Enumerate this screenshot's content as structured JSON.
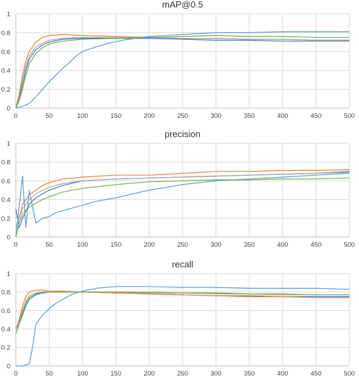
{
  "colors": {
    "series": [
      "#4472c4",
      "#ed7d31",
      "#a5a5a5",
      "#5b9bd5",
      "#70ad47",
      "#255e91",
      "#9e480e",
      "#636363",
      "#264478",
      "#43682b"
    ]
  },
  "chart_data": [
    {
      "type": "line",
      "title": "mAP@0.5",
      "xlabel": "",
      "ylabel": "",
      "xlim": [
        0,
        500
      ],
      "ylim": [
        0,
        1
      ],
      "x_ticks": [
        0,
        50,
        100,
        150,
        200,
        250,
        300,
        350,
        400,
        450,
        500
      ],
      "y_ticks": [
        0,
        0.2,
        0.4,
        0.6,
        0.8,
        1
      ],
      "grid": true,
      "legend": "none",
      "series": [
        {
          "x": [
            0,
            5,
            10,
            15,
            20,
            30,
            40,
            50,
            70,
            100,
            150,
            200,
            250,
            300,
            350,
            400,
            450,
            500
          ],
          "y": [
            0,
            0.1,
            0.25,
            0.4,
            0.52,
            0.62,
            0.67,
            0.7,
            0.73,
            0.74,
            0.74,
            0.74,
            0.73,
            0.72,
            0.72,
            0.71,
            0.71,
            0.71
          ]
        },
        {
          "x": [
            0,
            5,
            10,
            15,
            20,
            30,
            40,
            50,
            70,
            100,
            150,
            200,
            250,
            300,
            350,
            400,
            450,
            500
          ],
          "y": [
            0,
            0.15,
            0.35,
            0.5,
            0.6,
            0.7,
            0.75,
            0.77,
            0.78,
            0.77,
            0.76,
            0.75,
            0.74,
            0.74,
            0.73,
            0.73,
            0.72,
            0.72
          ]
        },
        {
          "x": [
            0,
            5,
            10,
            15,
            20,
            30,
            40,
            50,
            70,
            100,
            150,
            200,
            250,
            300,
            350,
            400,
            450,
            500
          ],
          "y": [
            0,
            0.12,
            0.3,
            0.45,
            0.55,
            0.65,
            0.69,
            0.72,
            0.74,
            0.75,
            0.75,
            0.75,
            0.74,
            0.74,
            0.73,
            0.73,
            0.72,
            0.72
          ]
        },
        {
          "x": [
            0,
            10,
            20,
            30,
            40,
            50,
            60,
            70,
            80,
            90,
            100,
            120,
            140,
            160,
            180,
            200,
            250,
            300,
            350,
            400,
            450,
            500
          ],
          "y": [
            0,
            0.02,
            0.05,
            0.12,
            0.2,
            0.28,
            0.35,
            0.42,
            0.48,
            0.55,
            0.6,
            0.65,
            0.69,
            0.72,
            0.74,
            0.76,
            0.78,
            0.8,
            0.8,
            0.81,
            0.81,
            0.81
          ]
        },
        {
          "x": [
            0,
            5,
            10,
            15,
            20,
            30,
            40,
            50,
            70,
            100,
            150,
            200,
            250,
            300,
            350,
            400,
            450,
            500
          ],
          "y": [
            0,
            0.08,
            0.2,
            0.35,
            0.47,
            0.58,
            0.64,
            0.68,
            0.71,
            0.73,
            0.74,
            0.75,
            0.76,
            0.77,
            0.76,
            0.76,
            0.75,
            0.75
          ]
        }
      ]
    },
    {
      "type": "line",
      "title": "precision",
      "xlabel": "",
      "ylabel": "",
      "xlim": [
        0,
        500
      ],
      "ylim": [
        0,
        1
      ],
      "x_ticks": [
        0,
        50,
        100,
        150,
        200,
        250,
        300,
        350,
        400,
        450,
        500
      ],
      "y_ticks": [
        0,
        0.2,
        0.4,
        0.6,
        0.8,
        1
      ],
      "grid": true,
      "legend": "none",
      "series": [
        {
          "x": [
            0,
            5,
            10,
            20,
            30,
            40,
            50,
            70,
            100,
            150,
            200,
            250,
            300,
            350,
            400,
            450,
            500
          ],
          "y": [
            0.3,
            0.1,
            0.2,
            0.35,
            0.42,
            0.46,
            0.5,
            0.55,
            0.6,
            0.62,
            0.63,
            0.64,
            0.65,
            0.66,
            0.67,
            0.68,
            0.7
          ]
        },
        {
          "x": [
            0,
            5,
            10,
            20,
            30,
            40,
            50,
            70,
            100,
            150,
            200,
            250,
            300,
            350,
            400,
            450,
            500
          ],
          "y": [
            0.1,
            0.2,
            0.35,
            0.45,
            0.5,
            0.55,
            0.58,
            0.62,
            0.64,
            0.66,
            0.66,
            0.68,
            0.7,
            0.7,
            0.71,
            0.71,
            0.72
          ]
        },
        {
          "x": [
            0,
            5,
            10,
            20,
            30,
            40,
            50,
            70,
            100,
            150,
            200,
            250,
            300,
            350,
            400,
            450,
            500
          ],
          "y": [
            0.1,
            0.2,
            0.3,
            0.4,
            0.46,
            0.5,
            0.53,
            0.57,
            0.6,
            0.62,
            0.63,
            0.64,
            0.65,
            0.66,
            0.67,
            0.68,
            0.69
          ]
        },
        {
          "x": [
            0,
            10,
            15,
            20,
            30,
            40,
            50,
            60,
            80,
            100,
            120,
            150,
            200,
            250,
            300,
            350,
            400,
            450,
            500
          ],
          "y": [
            0,
            0.65,
            0.1,
            0.5,
            0.15,
            0.2,
            0.22,
            0.26,
            0.3,
            0.34,
            0.38,
            0.42,
            0.5,
            0.56,
            0.6,
            0.62,
            0.64,
            0.66,
            0.68
          ]
        },
        {
          "x": [
            0,
            5,
            10,
            20,
            30,
            40,
            50,
            70,
            100,
            150,
            200,
            250,
            300,
            350,
            400,
            450,
            500
          ],
          "y": [
            0,
            0.15,
            0.25,
            0.32,
            0.36,
            0.4,
            0.43,
            0.48,
            0.52,
            0.56,
            0.59,
            0.6,
            0.61,
            0.61,
            0.62,
            0.62,
            0.63
          ]
        }
      ]
    },
    {
      "type": "line",
      "title": "recall",
      "xlabel": "",
      "ylabel": "",
      "xlim": [
        0,
        500
      ],
      "ylim": [
        0,
        1
      ],
      "x_ticks": [
        0,
        50,
        100,
        150,
        200,
        250,
        300,
        350,
        400,
        450,
        500
      ],
      "y_ticks": [
        0,
        0.2,
        0.4,
        0.6,
        0.8,
        1
      ],
      "grid": true,
      "legend": "none",
      "series": [
        {
          "x": [
            0,
            5,
            10,
            15,
            20,
            30,
            40,
            50,
            70,
            100,
            150,
            200,
            250,
            300,
            350,
            400,
            450,
            500
          ],
          "y": [
            0.4,
            0.45,
            0.55,
            0.65,
            0.72,
            0.77,
            0.79,
            0.8,
            0.8,
            0.8,
            0.79,
            0.78,
            0.77,
            0.76,
            0.76,
            0.75,
            0.75,
            0.75
          ]
        },
        {
          "x": [
            0,
            5,
            10,
            15,
            20,
            30,
            40,
            50,
            70,
            100,
            150,
            200,
            250,
            300,
            350,
            400,
            450,
            500
          ],
          "y": [
            0.4,
            0.5,
            0.65,
            0.75,
            0.8,
            0.82,
            0.82,
            0.81,
            0.81,
            0.8,
            0.79,
            0.78,
            0.77,
            0.76,
            0.75,
            0.75,
            0.74,
            0.74
          ]
        },
        {
          "x": [
            0,
            5,
            10,
            15,
            20,
            30,
            40,
            50,
            70,
            100,
            150,
            200,
            250,
            300,
            350,
            400,
            450,
            500
          ],
          "y": [
            0.4,
            0.48,
            0.6,
            0.7,
            0.76,
            0.79,
            0.8,
            0.8,
            0.8,
            0.8,
            0.8,
            0.79,
            0.79,
            0.78,
            0.78,
            0.77,
            0.77,
            0.77
          ]
        },
        {
          "x": [
            0,
            10,
            20,
            25,
            30,
            40,
            50,
            60,
            70,
            80,
            90,
            100,
            120,
            150,
            200,
            250,
            300,
            350,
            400,
            450,
            500
          ],
          "y": [
            0,
            0,
            0.02,
            0.2,
            0.45,
            0.55,
            0.62,
            0.68,
            0.72,
            0.76,
            0.79,
            0.81,
            0.84,
            0.86,
            0.86,
            0.85,
            0.85,
            0.84,
            0.84,
            0.84,
            0.83
          ]
        },
        {
          "x": [
            0,
            5,
            10,
            15,
            20,
            30,
            40,
            50,
            70,
            100,
            150,
            200,
            250,
            300,
            350,
            400,
            450,
            500
          ],
          "y": [
            0.35,
            0.45,
            0.58,
            0.68,
            0.74,
            0.78,
            0.8,
            0.8,
            0.8,
            0.8,
            0.8,
            0.8,
            0.79,
            0.79,
            0.78,
            0.78,
            0.77,
            0.77
          ]
        }
      ]
    }
  ]
}
